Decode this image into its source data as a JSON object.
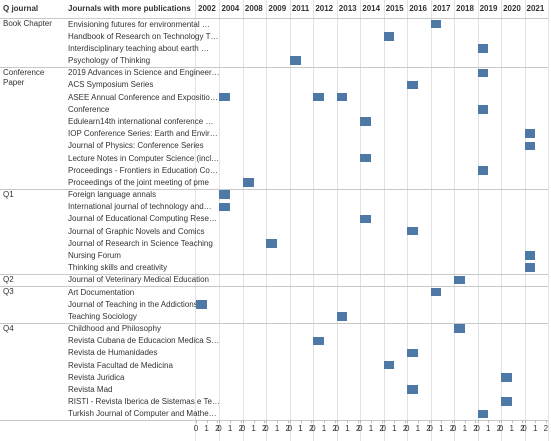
{
  "chart_data": {
    "type": "bar",
    "headers": [
      "Q journal",
      "Journals with more publications"
    ],
    "years": [
      2002,
      2004,
      2008,
      2009,
      2011,
      2012,
      2013,
      2014,
      2015,
      2016,
      2017,
      2018,
      2019,
      2020,
      2021
    ],
    "xlim": [
      0,
      2.2
    ],
    "xticks": [
      0,
      1,
      2
    ],
    "color": "#4e79a7",
    "groups": [
      {
        "name": "Book Chapter",
        "rows": [
          {
            "journal": "Envisioning futures for environmental …",
            "marks": [
              {
                "year": 2017,
                "value": 1
              }
            ]
          },
          {
            "journal": "Handbook of Research on Technology T…",
            "marks": [
              {
                "year": 2015,
                "value": 1
              }
            ]
          },
          {
            "journal": "Interdisciplinary teaching about earth …",
            "marks": [
              {
                "year": 2019,
                "value": 1
              }
            ]
          },
          {
            "journal": "Psychology of Thinking",
            "marks": [
              {
                "year": 2011,
                "value": 1
              }
            ]
          }
        ]
      },
      {
        "name": "Conference Paper",
        "rows": [
          {
            "journal": "2019 Advances in Science and Engineer…",
            "marks": [
              {
                "year": 2019,
                "value": 1
              }
            ]
          },
          {
            "journal": "ACS Symposium Series",
            "marks": [
              {
                "year": 2016,
                "value": 1
              }
            ]
          },
          {
            "journal": "ASEE Annual Conference and Expositio…",
            "marks": [
              {
                "year": 2004,
                "value": 1
              },
              {
                "year": 2012,
                "value": 1
              },
              {
                "year": 2013,
                "value": 1
              }
            ]
          },
          {
            "journal": "Conference",
            "marks": [
              {
                "year": 2019,
                "value": 1
              }
            ]
          },
          {
            "journal": "Edulearn14th international conference …",
            "marks": [
              {
                "year": 2014,
                "value": 1
              }
            ]
          },
          {
            "journal": "IOP Conference Series: Earth and Envir…",
            "marks": [
              {
                "year": 2021,
                "value": 1
              }
            ]
          },
          {
            "journal": "Journal of Physics: Conference Series",
            "marks": [
              {
                "year": 2021,
                "value": 1
              }
            ]
          },
          {
            "journal": "Lecture Notes in Computer Science (incl…",
            "marks": [
              {
                "year": 2014,
                "value": 1
              }
            ]
          },
          {
            "journal": "Proceedings - Frontiers in Education Co…",
            "marks": [
              {
                "year": 2019,
                "value": 1
              }
            ]
          },
          {
            "journal": "Proceedings of the joint meeting of pme",
            "marks": [
              {
                "year": 2008,
                "value": 1
              }
            ]
          }
        ]
      },
      {
        "name": "Q1",
        "rows": [
          {
            "journal": "Foreign language annals",
            "marks": [
              {
                "year": 2004,
                "value": 1
              }
            ]
          },
          {
            "journal": "International journal of technology and…",
            "marks": [
              {
                "year": 2004,
                "value": 1
              }
            ]
          },
          {
            "journal": "Journal of Educational Computing Rese…",
            "marks": [
              {
                "year": 2014,
                "value": 1
              }
            ]
          },
          {
            "journal": "Journal of Graphic Novels and Comics",
            "marks": [
              {
                "year": 2016,
                "value": 1
              }
            ]
          },
          {
            "journal": "Journal of Research in Science Teaching",
            "marks": [
              {
                "year": 2009,
                "value": 1
              }
            ]
          },
          {
            "journal": "Nursing Forum",
            "marks": [
              {
                "year": 2021,
                "value": 1
              }
            ]
          },
          {
            "journal": "Thinking skills and creativity",
            "marks": [
              {
                "year": 2021,
                "value": 1
              }
            ]
          }
        ]
      },
      {
        "name": "Q2",
        "rows": [
          {
            "journal": "Journal of Veterinary Medical Education",
            "marks": [
              {
                "year": 2018,
                "value": 1
              }
            ]
          }
        ]
      },
      {
        "name": "Q3",
        "rows": [
          {
            "journal": "Art Documentation",
            "marks": [
              {
                "year": 2017,
                "value": 1
              }
            ]
          },
          {
            "journal": "Journal of Teaching in the Addictions",
            "marks": [
              {
                "year": 2002,
                "value": 1
              }
            ]
          },
          {
            "journal": "Teaching Sociology",
            "marks": [
              {
                "year": 2013,
                "value": 1
              }
            ]
          }
        ]
      },
      {
        "name": "Q4",
        "rows": [
          {
            "journal": "Childhood and Philosophy",
            "marks": [
              {
                "year": 2018,
                "value": 1
              }
            ]
          },
          {
            "journal": "Revista Cubana de Educacion Medica S…",
            "marks": [
              {
                "year": 2012,
                "value": 1
              }
            ]
          },
          {
            "journal": "Revista de Humanidades",
            "marks": [
              {
                "year": 2016,
                "value": 1
              }
            ]
          },
          {
            "journal": "Revista Facultad de Medicina",
            "marks": [
              {
                "year": 2015,
                "value": 1
              }
            ]
          },
          {
            "journal": "Revista Juridica",
            "marks": [
              {
                "year": 2020,
                "value": 1
              }
            ]
          },
          {
            "journal": "Revista Mad",
            "marks": [
              {
                "year": 2016,
                "value": 1
              }
            ]
          },
          {
            "journal": "RISTI - Revista Iberica de Sistemas e Te…",
            "marks": [
              {
                "year": 2020,
                "value": 1
              }
            ]
          },
          {
            "journal": "Turkish Journal of Computer and Mathe…",
            "marks": [
              {
                "year": 2019,
                "value": 1
              }
            ]
          }
        ]
      }
    ]
  }
}
